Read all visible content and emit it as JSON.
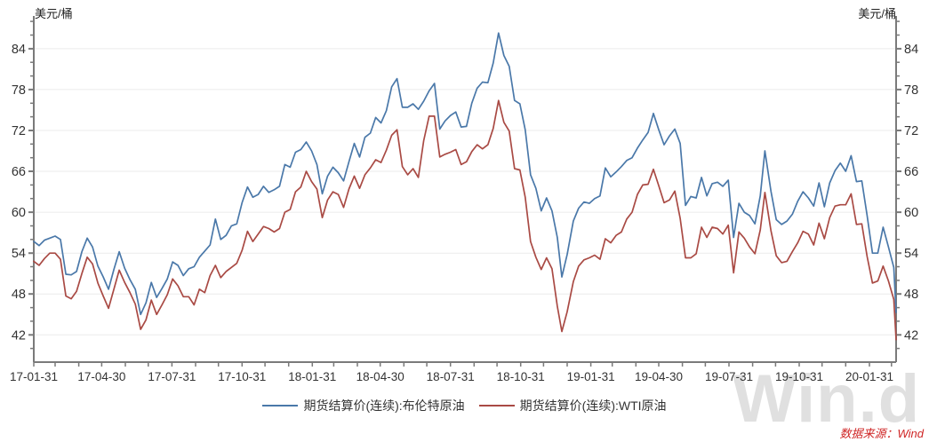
{
  "header": {
    "unit_left": "美元/桶",
    "unit_right": "美元/桶"
  },
  "legend": {
    "items": [
      {
        "label": "期货结算价(连续):布伦特原油",
        "color": "#4a78a9"
      },
      {
        "label": "期货结算价(连续):WTI原油",
        "color": "#a94a44"
      }
    ]
  },
  "footer": {
    "source_note": "数据来源：Wind",
    "watermark": "Win.d"
  },
  "colors": {
    "axis": "#7a7a7a",
    "grid": "#ebebeb",
    "tick_label": "#333333",
    "brent_line": "#4a78a9",
    "wti_line": "#a94a44",
    "source_text": "#cf2525",
    "watermark": "#e0e0e0"
  },
  "chart_data": {
    "type": "line",
    "title": "",
    "xlabel": "",
    "ylabel": "美元/桶",
    "grid": "horizontal",
    "legend_position": "bottom",
    "ylim": [
      38,
      88.8
    ],
    "y_ticks": [
      42,
      48,
      54,
      60,
      66,
      72,
      78,
      84
    ],
    "y_minor_step": 2,
    "x_domain": [
      "2017-01-31",
      "2020-03-06"
    ],
    "x_tick_labels": [
      "17-01-31",
      "17-04-30",
      "17-07-31",
      "17-10-31",
      "18-01-31",
      "18-04-30",
      "18-07-31",
      "18-10-31",
      "19-01-31",
      "19-04-30",
      "19-07-31",
      "19-10-31",
      "20-01-31"
    ],
    "x_tick_dates": [
      "2017-01-31",
      "2017-04-30",
      "2017-07-31",
      "2017-10-31",
      "2018-01-31",
      "2018-04-30",
      "2018-07-31",
      "2018-10-31",
      "2019-01-31",
      "2019-04-30",
      "2019-07-31",
      "2019-10-31",
      "2020-01-31"
    ],
    "x": [
      "2017-01-31",
      "2017-02-07",
      "2017-02-14",
      "2017-02-21",
      "2017-02-28",
      "2017-03-07",
      "2017-03-14",
      "2017-03-21",
      "2017-03-28",
      "2017-04-04",
      "2017-04-11",
      "2017-04-18",
      "2017-04-25",
      "2017-05-02",
      "2017-05-09",
      "2017-05-16",
      "2017-05-23",
      "2017-05-30",
      "2017-06-06",
      "2017-06-13",
      "2017-06-20",
      "2017-06-27",
      "2017-07-04",
      "2017-07-11",
      "2017-07-18",
      "2017-07-25",
      "2017-08-01",
      "2017-08-08",
      "2017-08-15",
      "2017-08-22",
      "2017-08-29",
      "2017-09-05",
      "2017-09-12",
      "2017-09-19",
      "2017-09-26",
      "2017-10-03",
      "2017-10-10",
      "2017-10-17",
      "2017-10-24",
      "2017-10-31",
      "2017-11-07",
      "2017-11-14",
      "2017-11-21",
      "2017-11-28",
      "2017-12-05",
      "2017-12-12",
      "2017-12-19",
      "2017-12-26",
      "2018-01-02",
      "2018-01-09",
      "2018-01-16",
      "2018-01-23",
      "2018-01-30",
      "2018-02-06",
      "2018-02-13",
      "2018-02-20",
      "2018-02-27",
      "2018-03-06",
      "2018-03-13",
      "2018-03-20",
      "2018-03-27",
      "2018-04-03",
      "2018-04-10",
      "2018-04-17",
      "2018-04-24",
      "2018-05-01",
      "2018-05-08",
      "2018-05-15",
      "2018-05-22",
      "2018-05-29",
      "2018-06-05",
      "2018-06-12",
      "2018-06-19",
      "2018-06-26",
      "2018-07-03",
      "2018-07-10",
      "2018-07-17",
      "2018-07-24",
      "2018-07-31",
      "2018-08-07",
      "2018-08-14",
      "2018-08-21",
      "2018-08-28",
      "2018-09-04",
      "2018-09-11",
      "2018-09-18",
      "2018-09-25",
      "2018-10-02",
      "2018-10-09",
      "2018-10-16",
      "2018-10-23",
      "2018-10-30",
      "2018-11-06",
      "2018-11-13",
      "2018-11-20",
      "2018-11-27",
      "2018-12-04",
      "2018-12-11",
      "2018-12-18",
      "2018-12-24",
      "2018-12-31",
      "2019-01-08",
      "2019-01-15",
      "2019-01-22",
      "2019-01-29",
      "2019-02-05",
      "2019-02-12",
      "2019-02-19",
      "2019-02-26",
      "2019-03-05",
      "2019-03-12",
      "2019-03-19",
      "2019-03-26",
      "2019-04-02",
      "2019-04-09",
      "2019-04-16",
      "2019-04-23",
      "2019-04-30",
      "2019-05-07",
      "2019-05-14",
      "2019-05-21",
      "2019-05-28",
      "2019-06-04",
      "2019-06-11",
      "2019-06-18",
      "2019-06-25",
      "2019-07-02",
      "2019-07-09",
      "2019-07-16",
      "2019-07-23",
      "2019-07-30",
      "2019-08-06",
      "2019-08-13",
      "2019-08-20",
      "2019-08-27",
      "2019-09-03",
      "2019-09-10",
      "2019-09-16",
      "2019-09-24",
      "2019-10-01",
      "2019-10-08",
      "2019-10-15",
      "2019-10-22",
      "2019-10-29",
      "2019-11-05",
      "2019-11-12",
      "2019-11-19",
      "2019-11-26",
      "2019-12-03",
      "2019-12-10",
      "2019-12-17",
      "2019-12-24",
      "2019-12-31",
      "2020-01-07",
      "2020-01-14",
      "2020-01-21",
      "2020-01-28",
      "2020-02-04",
      "2020-02-11",
      "2020-02-18",
      "2020-02-25",
      "2020-03-03",
      "2020-03-06"
    ],
    "series": [
      {
        "name": "期货结算价(连续):布伦特原油",
        "color": "#4a78a9",
        "values": [
          55.7,
          55.1,
          55.9,
          56.2,
          56.5,
          56.0,
          50.9,
          50.8,
          51.3,
          54.2,
          56.2,
          54.9,
          52.1,
          50.5,
          48.7,
          51.6,
          54.2,
          51.8,
          50.1,
          48.7,
          45.0,
          46.7,
          49.7,
          47.5,
          48.8,
          50.2,
          52.7,
          52.2,
          50.7,
          51.7,
          52.0,
          53.4,
          54.3,
          55.2,
          59.0,
          56.0,
          56.6,
          58.0,
          58.3,
          61.4,
          63.7,
          62.2,
          62.6,
          63.8,
          62.9,
          63.3,
          63.8,
          67.0,
          66.6,
          68.8,
          69.2,
          70.3,
          69.0,
          67.0,
          62.7,
          65.3,
          66.6,
          65.8,
          64.6,
          67.4,
          70.1,
          68.1,
          71.0,
          71.6,
          73.9,
          73.1,
          74.9,
          78.4,
          79.6,
          75.4,
          75.4,
          75.9,
          75.1,
          76.3,
          77.8,
          78.9,
          72.2,
          73.4,
          74.2,
          74.7,
          72.5,
          72.6,
          76.0,
          78.2,
          79.1,
          79.0,
          81.9,
          86.3,
          83.0,
          81.4,
          76.4,
          75.9,
          72.1,
          65.5,
          63.5,
          60.2,
          62.1,
          60.2,
          56.3,
          50.5,
          53.8,
          58.7,
          60.6,
          61.5,
          61.3,
          62.0,
          62.4,
          66.5,
          65.2,
          65.9,
          66.7,
          67.6,
          68.0,
          69.4,
          70.6,
          71.7,
          74.5,
          72.1,
          69.9,
          71.2,
          72.2,
          70.1,
          61.0,
          62.3,
          62.1,
          65.1,
          62.4,
          64.2,
          64.4,
          63.8,
          64.7,
          56.3,
          61.3,
          60.0,
          59.5,
          58.3,
          62.4,
          69.0,
          63.1,
          58.9,
          58.2,
          58.7,
          59.7,
          61.6,
          63.0,
          62.1,
          60.9,
          64.3,
          60.8,
          64.3,
          66.1,
          67.2,
          66.0,
          68.3,
          64.5,
          64.6,
          59.5,
          54.0,
          54.0,
          57.8,
          54.9,
          51.9,
          45.3
        ]
      },
      {
        "name": "期货结算价(连续):WTI原油",
        "color": "#a94a44",
        "values": [
          52.8,
          52.2,
          53.2,
          54.0,
          54.0,
          53.1,
          47.7,
          47.3,
          48.4,
          51.0,
          53.4,
          52.4,
          49.6,
          47.7,
          45.9,
          48.7,
          51.5,
          49.7,
          48.2,
          46.5,
          42.8,
          44.2,
          47.1,
          45.0,
          46.4,
          47.9,
          50.2,
          49.2,
          47.6,
          47.6,
          46.4,
          48.7,
          48.2,
          50.7,
          52.2,
          50.4,
          51.3,
          51.9,
          52.5,
          54.4,
          57.2,
          55.7,
          56.8,
          57.9,
          57.6,
          57.1,
          57.6,
          60.0,
          60.4,
          63.0,
          63.7,
          66.0,
          64.5,
          63.4,
          59.2,
          61.8,
          63.0,
          62.6,
          60.7,
          63.4,
          65.3,
          63.5,
          65.5,
          66.5,
          67.7,
          67.3,
          69.1,
          71.3,
          72.1,
          66.7,
          65.5,
          66.4,
          65.1,
          70.5,
          74.1,
          74.1,
          68.1,
          68.5,
          68.8,
          69.2,
          67.0,
          67.4,
          68.9,
          69.9,
          69.3,
          69.9,
          72.3,
          76.4,
          73.2,
          71.9,
          66.4,
          66.2,
          62.2,
          55.7,
          53.4,
          51.6,
          53.3,
          51.7,
          46.2,
          42.5,
          45.4,
          49.8,
          52.1,
          53.0,
          53.3,
          53.7,
          53.1,
          56.1,
          55.5,
          56.6,
          57.1,
          59.0,
          60.0,
          62.6,
          64.0,
          64.1,
          66.3,
          63.9,
          61.4,
          61.8,
          63.1,
          59.1,
          53.3,
          53.3,
          53.9,
          57.8,
          56.3,
          57.8,
          57.6,
          56.8,
          58.1,
          51.1,
          57.1,
          56.2,
          54.9,
          53.9,
          57.4,
          62.9,
          57.3,
          53.6,
          52.6,
          52.8,
          54.2,
          55.5,
          57.2,
          56.8,
          55.2,
          58.4,
          56.1,
          59.2,
          60.9,
          61.1,
          61.1,
          62.7,
          58.2,
          58.3,
          53.5,
          49.6,
          49.9,
          52.1,
          49.9,
          47.2,
          41.3
        ]
      }
    ]
  }
}
